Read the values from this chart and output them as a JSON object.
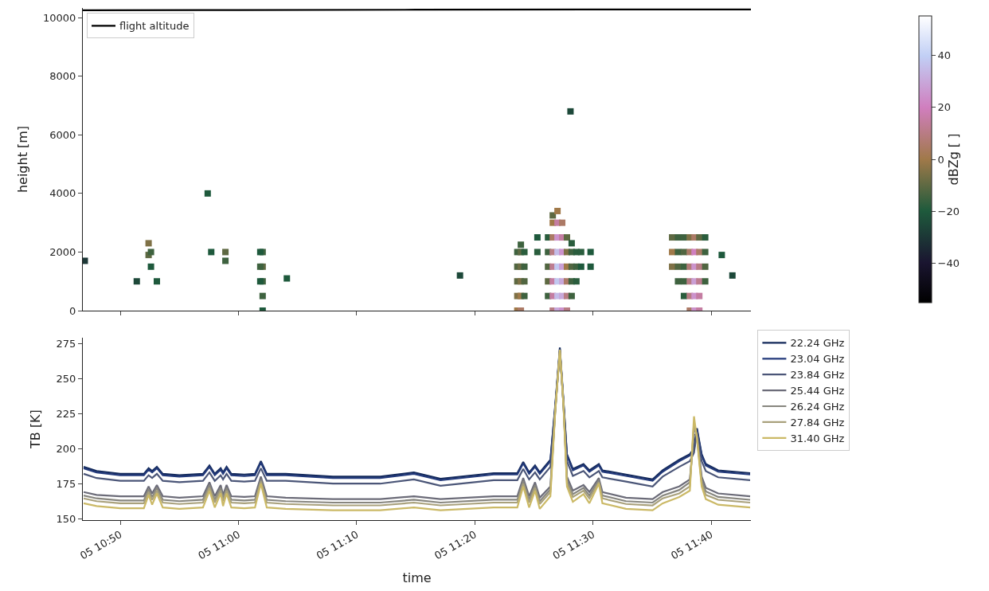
{
  "chart_data": [
    {
      "type": "scatter",
      "ylabel": "height [m]",
      "marker": "square",
      "legend": "top left",
      "tick_labels": "y",
      "clabel": "dBZg [ ]",
      "clim": [
        -55,
        55
      ],
      "cticks": [
        -40,
        -20,
        0,
        20,
        40
      ],
      "xlim": [
        "--01-05T10:46:50",
        "--01-05T11:43:22"
      ],
      "xticks": [
        {
          "value": "--01-05T10:50",
          "label": "05 10:50"
        },
        {
          "value": "--01-05T11:00",
          "label": "05 11:00"
        },
        {
          "value": "--01-05T11:10",
          "label": "05 11:10"
        },
        {
          "value": "--01-05T11:20",
          "label": "05 11:20"
        },
        {
          "value": "--01-05T11:30",
          "label": "05 11:30"
        },
        {
          "value": "--01-05T11:40",
          "label": "05 11:40"
        }
      ],
      "ylim": [
        0,
        10330
      ],
      "yticks": [
        0,
        2000,
        4000,
        6000,
        8000,
        10000
      ],
      "x": [
        "--01-05T11:26:12",
        "--01-05T11:26:12",
        "--01-05T11:26:12",
        "--01-05T11:26:12",
        "--01-05T11:26:12",
        "--01-05T11:26:36",
        "--01-05T11:26:36",
        "--01-05T11:26:36",
        "--01-05T11:26:36",
        "--01-05T11:26:36",
        "--01-05T11:26:36",
        "--01-05T11:26:36",
        "--01-05T11:26:36",
        "--01-05T11:27:00",
        "--01-05T11:27:00",
        "--01-05T11:27:00",
        "--01-05T11:27:00",
        "--01-05T11:27:00",
        "--01-05T11:27:00",
        "--01-05T11:27:00",
        "--01-05T11:27:00",
        "--01-05T11:27:24",
        "--01-05T11:27:24",
        "--01-05T11:27:24",
        "--01-05T11:27:24",
        "--01-05T11:27:24",
        "--01-05T11:27:24",
        "--01-05T11:27:24",
        "--01-05T11:27:48",
        "--01-05T11:27:48",
        "--01-05T11:27:48",
        "--01-05T11:27:48",
        "--01-05T11:27:48",
        "--01-05T11:27:48",
        "--01-05T11:28:12",
        "--01-05T11:28:12",
        "--01-05T11:28:12",
        "--01-05T11:28:12",
        "--01-05T11:28:12",
        "--01-05T11:28:36",
        "--01-05T11:28:36",
        "--01-05T11:28:36",
        "--01-05T11:29:00",
        "--01-05T11:29:00",
        "--01-05T11:23:36",
        "--01-05T11:23:36",
        "--01-05T11:23:36",
        "--01-05T11:23:36",
        "--01-05T11:23:36",
        "--01-05T11:23:54",
        "--01-05T11:23:54",
        "--01-05T11:23:54",
        "--01-05T11:23:54",
        "--01-05T11:23:54",
        "--01-05T11:23:54",
        "--01-05T11:24:12",
        "--01-05T11:24:12",
        "--01-05T11:24:12",
        "--01-05T11:24:12",
        "--01-05T11:25:18",
        "--01-05T11:25:18",
        "--01-05T11:29:48",
        "--01-05T11:29:48",
        "--01-05T11:36:42",
        "--01-05T11:36:42",
        "--01-05T11:36:42",
        "--01-05T11:37:12",
        "--01-05T11:37:12",
        "--01-05T11:37:12",
        "--01-05T11:37:12",
        "--01-05T11:37:42",
        "--01-05T11:37:42",
        "--01-05T11:37:42",
        "--01-05T11:37:42",
        "--01-05T11:37:42",
        "--01-05T11:38:12",
        "--01-05T11:38:12",
        "--01-05T11:38:12",
        "--01-05T11:38:12",
        "--01-05T11:38:12",
        "--01-05T11:38:12",
        "--01-05T11:38:36",
        "--01-05T11:38:36",
        "--01-05T11:38:36",
        "--01-05T11:38:36",
        "--01-05T11:38:36",
        "--01-05T11:38:36",
        "--01-05T11:39:00",
        "--01-05T11:39:00",
        "--01-05T11:39:00",
        "--01-05T11:39:00",
        "--01-05T11:39:00",
        "--01-05T11:39:00",
        "--01-05T11:39:30",
        "--01-05T11:39:30",
        "--01-05T11:39:30",
        "--01-05T11:39:30",
        "--01-05T11:40:54",
        "--01-05T11:41:48",
        "--01-05T11:02:03",
        "--01-05T11:02:03",
        "--01-05T11:02:03",
        "--01-05T11:02:03",
        "--01-05T11:02:03",
        "--01-05T11:01:51",
        "--01-05T11:01:51",
        "--01-05T11:01:51",
        "--01-05T10:52:24",
        "--01-05T10:52:24",
        "--01-05T10:52:36",
        "--01-05T10:52:36",
        "--01-05T10:58:54",
        "--01-05T10:58:54",
        "--01-05T10:57:42",
        "--01-05T10:53:06",
        "--01-05T10:51:24",
        "--01-05T10:47:00",
        "--01-05T11:04:06",
        "--01-05T10:57:24",
        "--01-05T11:18:45",
        "--01-05T11:28:06"
      ],
      "values": [
        500,
        1000,
        1500,
        2000,
        2500,
        0,
        500,
        1000,
        1500,
        2000,
        2500,
        3000,
        3250,
        0,
        500,
        1000,
        1500,
        2000,
        2500,
        3000,
        3400,
        0,
        500,
        1000,
        1500,
        2000,
        2500,
        3000,
        0,
        500,
        1000,
        1500,
        2000,
        2500,
        500,
        1000,
        1500,
        2000,
        2300,
        1000,
        1500,
        2000,
        1500,
        2000,
        0,
        500,
        1000,
        1500,
        2000,
        0,
        500,
        1000,
        1500,
        2000,
        2250,
        500,
        1000,
        1500,
        2000,
        2000,
        2500,
        1500,
        2000,
        1500,
        2000,
        2500,
        1000,
        1500,
        2000,
        2500,
        500,
        1000,
        1500,
        2000,
        2500,
        0,
        500,
        1000,
        1500,
        2000,
        2500,
        0,
        500,
        1000,
        1500,
        2000,
        2500,
        0,
        500,
        1000,
        1500,
        2000,
        2500,
        1000,
        1500,
        2000,
        2500,
        1900,
        1200,
        0,
        500,
        1000,
        1500,
        2000,
        1000,
        1500,
        2000,
        1900,
        2300,
        1500,
        2000,
        1700,
        2000,
        2000,
        1000,
        1000,
        1700,
        1100,
        4000,
        1200,
        6800
      ],
      "colors": [
        "#3e623f",
        "#5e6942",
        "#516641",
        "#3e623f",
        "#2a5d3d",
        "#b87c84",
        "#c47da2",
        "#c47da2",
        "#bd7c90",
        "#b87c84",
        "#ac7a66",
        "#a07949",
        "#5e6942",
        "#c8a8da",
        "#c4bce8",
        "#c2c8f0",
        "#c2c8f0",
        "#c4bce8",
        "#cc93cc",
        "#c47da2",
        "#a07949",
        "#cc93cc",
        "#c8a8da",
        "#c8a8da",
        "#ca9fd5",
        "#cc93cc",
        "#c47da2",
        "#ac7a66",
        "#b87c84",
        "#b87c84",
        "#ac7a66",
        "#a07949",
        "#7f7146",
        "#5e6942",
        "#3e623f",
        "#3e623f",
        "#516641",
        "#3e623f",
        "#2a5d3d",
        "#2a5d3d",
        "#3e623f",
        "#2a5d3d",
        "#1e593c",
        "#2a5d3d",
        "#a07949",
        "#7f7146",
        "#5e6942",
        "#516641",
        "#3e623f",
        "#ac7a66",
        "#a07949",
        "#7f7146",
        "#6c6c44",
        "#5e6942",
        "#3e623f",
        "#3e623f",
        "#516641",
        "#3e623f",
        "#2a5d3d",
        "#2a5d3d",
        "#1e593c",
        "#1e593c",
        "#1e593c",
        "#7f7146",
        "#a07949",
        "#5e6942",
        "#3e623f",
        "#516641",
        "#3e623f",
        "#3e623f",
        "#2a5d3d",
        "#3e623f",
        "#3e623f",
        "#516641",
        "#3e623f",
        "#ac7a66",
        "#b87c84",
        "#b87c84",
        "#b37b78",
        "#ac7a66",
        "#7f7146",
        "#cc93cc",
        "#cc93cc",
        "#ca9fd5",
        "#cc93cc",
        "#d07fbf",
        "#ac7a66",
        "#c47da2",
        "#c47da2",
        "#bd7c90",
        "#b87c84",
        "#ac7a66",
        "#5e6942",
        "#3e623f",
        "#516641",
        "#3e623f",
        "#2a5d3d",
        "#1e593c",
        "#1d4839",
        "#1e593c",
        "#3e623f",
        "#3e623f",
        "#5e6942",
        "#3e623f",
        "#1e593c",
        "#3e623f",
        "#1e593c",
        "#5e6942",
        "#7f7146",
        "#1e593c",
        "#3e623f",
        "#3e623f",
        "#5e6942",
        "#1e593c",
        "#1e593c",
        "#1d4839",
        "#1c3736",
        "#1e593c",
        "#1e593c",
        "#1d4839",
        "#1d4839"
      ],
      "series": [
        {
          "type": "line",
          "name": "flight altitude",
          "color": "#000000",
          "marker": "none",
          "x": [
            "--01-05T10:46:50",
            "--01-05T11:00:00",
            "--01-05T11:15:00",
            "--01-05T11:30:00",
            "--01-05T11:43:22"
          ],
          "values": [
            10250,
            10260,
            10270,
            10280,
            10280
          ]
        }
      ]
    },
    {
      "type": "line",
      "xlabel": "time",
      "ylabel": "TB [K]",
      "marker": "none",
      "line_style": "solid",
      "legend": "right",
      "xlim": [
        "--01-05T10:46:50",
        "--01-05T11:43:22"
      ],
      "xticks": [
        {
          "value": "--01-05T10:50",
          "label": "05 10:50"
        },
        {
          "value": "--01-05T11:00",
          "label": "05 11:00"
        },
        {
          "value": "--01-05T11:10",
          "label": "05 11:10"
        },
        {
          "value": "--01-05T11:20",
          "label": "05 11:20"
        },
        {
          "value": "--01-05T11:30",
          "label": "05 11:30"
        },
        {
          "value": "--01-05T11:40",
          "label": "05 11:40"
        }
      ],
      "ylim": [
        149,
        279
      ],
      "yticks": [
        150,
        175,
        200,
        225,
        250,
        275
      ],
      "x": [
        "--01-05T10:46:54",
        "--01-05T10:48:00",
        "--01-05T10:50:00",
        "--01-05T10:52:00",
        "--01-05T10:52:24",
        "--01-05T10:52:42",
        "--01-05T10:53:06",
        "--01-05T10:53:36",
        "--01-05T10:55:00",
        "--01-05T10:57:00",
        "--01-05T10:57:33",
        "--01-05T10:58:00",
        "--01-05T10:58:30",
        "--01-05T10:58:42",
        "--01-05T10:59:00",
        "--01-05T10:59:24",
        "--01-05T11:00:30",
        "--01-05T11:01:24",
        "--01-05T11:01:54",
        "--01-05T11:02:24",
        "--01-05T11:04:00",
        "--01-05T11:08:00",
        "--01-05T11:12:00",
        "--01-05T11:14:51",
        "--01-05T11:17:06",
        "--01-05T11:21:36",
        "--01-05T11:23:36",
        "--01-05T11:24:06",
        "--01-05T11:24:36",
        "--01-05T11:25:06",
        "--01-05T11:25:30",
        "--01-05T11:26:24",
        "--01-05T11:26:48",
        "--01-05T11:27:12",
        "--01-05T11:27:30",
        "--01-05T11:27:48",
        "--01-05T11:28:18",
        "--01-05T11:29:12",
        "--01-05T11:29:42",
        "--01-05T11:30:30",
        "--01-05T11:30:48",
        "--01-05T11:32:48",
        "--01-05T11:35:03",
        "--01-05T11:35:54",
        "--01-05T11:37:18",
        "--01-05T11:38:12",
        "--01-05T11:38:33",
        "--01-05T11:38:48",
        "--01-05T11:39:12",
        "--01-05T11:39:33",
        "--01-05T11:40:36",
        "--01-05T11:43:18"
      ],
      "series": [
        {
          "name": "22.24 GHz",
          "color": "#13295a",
          "values": [
            187,
            184,
            182,
            182,
            186,
            184,
            187,
            182,
            181,
            182,
            188,
            182,
            186,
            183,
            187,
            182,
            181.5,
            182,
            191,
            182,
            182,
            180,
            180,
            183,
            178.5,
            182.5,
            182.5,
            190.5,
            183,
            188,
            183,
            192,
            230,
            272,
            235,
            196,
            185.5,
            189,
            184.5,
            189,
            184.5,
            181.5,
            178,
            184.5,
            192,
            196,
            200,
            214.5,
            196,
            189,
            184.5,
            182.5
          ]
        },
        {
          "name": "23.04 GHz",
          "color": "#22397a",
          "values": [
            186,
            183,
            181,
            181,
            185,
            183,
            186,
            181,
            180,
            181,
            187,
            181,
            185,
            182,
            186,
            181,
            180.5,
            181,
            190,
            181,
            181,
            179,
            179,
            182,
            177.5,
            181.5,
            181.5,
            189.5,
            182,
            187,
            182,
            191,
            229,
            271,
            234,
            195,
            184.5,
            188,
            183.5,
            188,
            183.5,
            180.5,
            177,
            183.5,
            191,
            195,
            199,
            213.5,
            195,
            188,
            183.5,
            181.5
          ]
        },
        {
          "name": "23.84 GHz",
          "color": "#4b5678",
          "values": [
            182,
            179,
            177,
            177,
            181,
            179,
            182,
            177,
            176,
            177,
            183,
            177,
            181,
            178,
            182,
            177,
            176.5,
            177,
            186,
            177,
            177,
            175,
            175,
            178,
            173.5,
            177.5,
            177.5,
            185.5,
            178,
            183,
            178,
            187,
            227,
            270,
            232,
            191,
            180.5,
            184,
            179.5,
            184,
            179.5,
            176.5,
            173,
            180,
            187,
            191,
            197,
            212,
            191,
            184,
            179.5,
            177.5
          ]
        },
        {
          "name": "25.44 GHz",
          "color": "#6b6b78",
          "values": [
            169,
            167,
            166,
            166,
            173,
            168,
            174,
            166,
            165,
            166,
            176,
            166,
            174,
            167,
            174,
            166,
            165.5,
            166,
            180,
            166,
            165,
            164,
            164,
            166,
            164,
            166,
            166,
            179,
            166,
            176,
            165,
            173,
            227,
            270,
            233,
            180,
            170,
            174,
            169,
            179,
            169,
            165,
            164,
            169,
            173,
            178,
            210,
            210,
            180,
            172,
            168,
            166
          ]
        },
        {
          "name": "26.24 GHz",
          "color": "#87867f",
          "values": [
            166.5,
            164.5,
            163,
            163,
            171,
            165.5,
            172,
            163.5,
            162.5,
            163.5,
            174,
            163.5,
            172,
            164.5,
            172,
            163.5,
            163,
            163.5,
            178,
            163.5,
            162.5,
            161.5,
            161.5,
            163.5,
            161.5,
            163.5,
            163.5,
            177,
            163.5,
            174,
            162.5,
            171,
            226,
            270,
            232.5,
            177.5,
            167.5,
            172,
            166.5,
            177.5,
            166.5,
            162.5,
            161.5,
            166.5,
            170.5,
            176,
            215,
            209,
            177.5,
            169.5,
            165.5,
            163.5
          ]
        },
        {
          "name": "27.84 GHz",
          "color": "#a9a17c",
          "values": [
            164.5,
            162.5,
            161,
            161,
            169,
            163.5,
            170,
            161.5,
            160.5,
            161.5,
            172,
            161.5,
            170,
            162.5,
            170,
            161.5,
            161,
            161.5,
            176.5,
            161.5,
            160.5,
            159.5,
            159.5,
            161.5,
            159.5,
            161.5,
            161.5,
            175,
            161.5,
            172,
            160.5,
            169,
            225.5,
            270,
            232,
            175,
            165.5,
            170,
            164.5,
            176,
            164.5,
            160.5,
            159.5,
            164.5,
            168,
            173,
            219,
            208,
            175,
            167,
            163.5,
            161.5
          ]
        },
        {
          "name": "31.40 GHz",
          "color": "#cbb966",
          "values": [
            161,
            159,
            157.5,
            157.5,
            167,
            160,
            168,
            158,
            157,
            158,
            170,
            158,
            168,
            159,
            168,
            158,
            157.5,
            158,
            175,
            158,
            157,
            156,
            156,
            158,
            156,
            158,
            158,
            173,
            158,
            170,
            157,
            166,
            225,
            270.5,
            232,
            173,
            162,
            167.5,
            161,
            175,
            161,
            157,
            156,
            161,
            165.5,
            170,
            223,
            207,
            173,
            164,
            160,
            158
          ]
        }
      ]
    }
  ]
}
